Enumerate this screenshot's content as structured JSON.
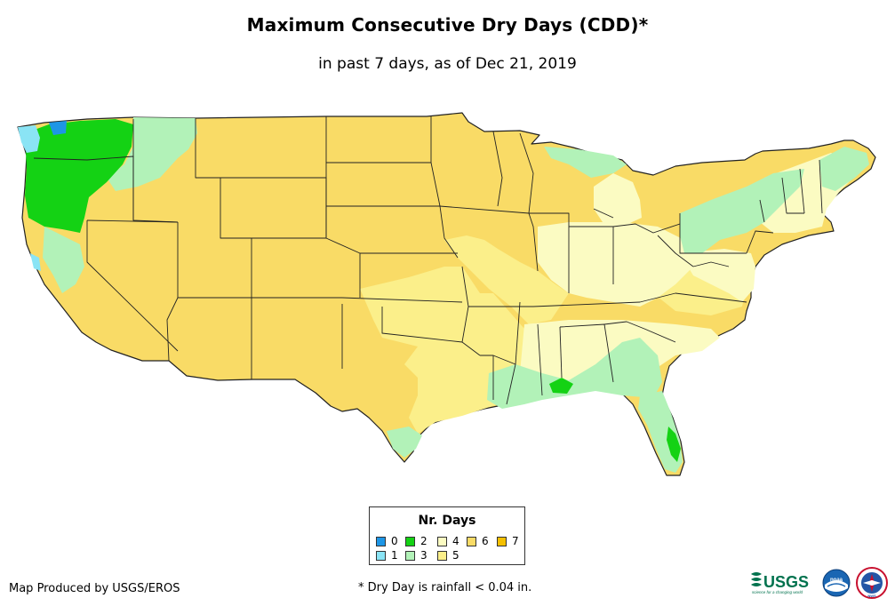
{
  "title": "Maximum Consecutive Dry Days (CDD)*",
  "subtitle": "in past 7 days, as of Dec 21, 2019",
  "legend": {
    "title": "Nr. Days",
    "items": [
      {
        "label": "0",
        "color": "#1e96e6"
      },
      {
        "label": "1",
        "color": "#8ae4f5"
      },
      {
        "label": "2",
        "color": "#14d214"
      },
      {
        "label": "3",
        "color": "#b2f2b8"
      },
      {
        "label": "4",
        "color": "#fbfbc2"
      },
      {
        "label": "5",
        "color": "#fbef8a"
      },
      {
        "label": "6",
        "color": "#f9db66"
      },
      {
        "label": "7",
        "color": "#f5c000"
      }
    ]
  },
  "footer": {
    "credit": "Map Produced by USGS/EROS",
    "note": "* Dry Day is rainfall < 0.04 in."
  },
  "logos": {
    "usgs": "USGS",
    "usgs_tagline": "science for a changing world",
    "noaa": "noaa",
    "nws": "NWS"
  }
}
